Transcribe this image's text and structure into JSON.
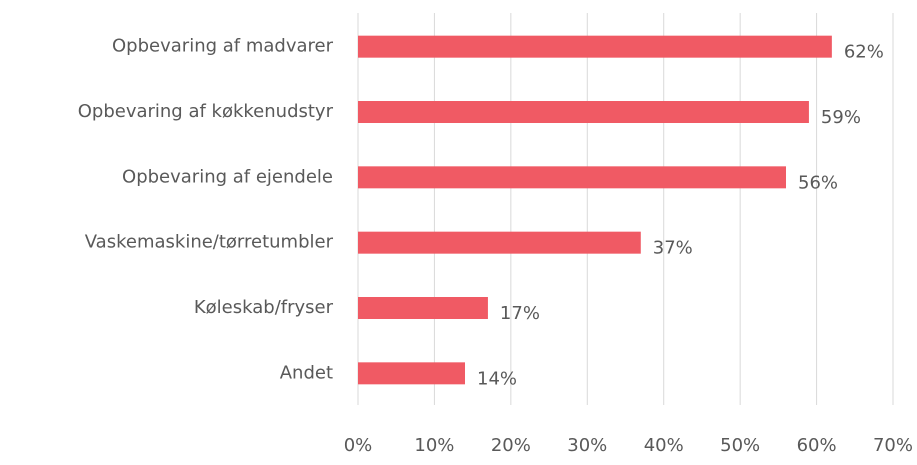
{
  "chart_data": {
    "type": "barh",
    "categories": [
      "Opbevaring af madvarer",
      "Opbevaring af køkkenudstyr",
      "Opbevaring af ejendele",
      "Vaskemaskine/tørretumbler",
      "Køleskab/fryser",
      "Andet"
    ],
    "values": [
      62,
      59,
      56,
      37,
      17,
      14
    ],
    "value_labels": [
      "62%",
      "59%",
      "56%",
      "37%",
      "17%",
      "14%"
    ],
    "color": "#f05a64",
    "xlim": [
      0,
      70
    ],
    "xticks": [
      {
        "value": 0,
        "label": "0%"
      },
      {
        "value": 10,
        "label": "10%"
      },
      {
        "value": 20,
        "label": "20%"
      },
      {
        "value": 30,
        "label": "30%"
      },
      {
        "value": 40,
        "label": "40%"
      },
      {
        "value": 50,
        "label": "50%"
      },
      {
        "value": 60,
        "label": "60%"
      },
      {
        "value": 70,
        "label": "70%"
      }
    ],
    "grid": true
  }
}
